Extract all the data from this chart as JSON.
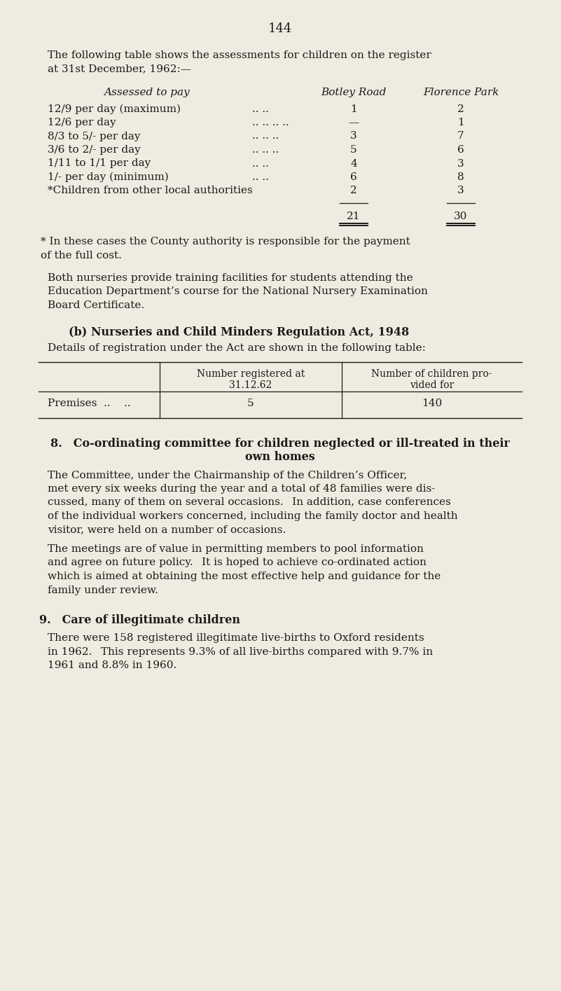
{
  "bg_color": "#f0ebe0",
  "text_color": "#1a1a1a",
  "page_number": "144",
  "intro_line1": "The following table shows the assessments for children on the register",
  "intro_line2": "at 31st December, 1962:—",
  "table1_header_col0": "Assessed to pay",
  "table1_header_col1": "Botley Road",
  "table1_header_col2": "Florence Park",
  "table1_rows": [
    [
      "12/9 per day (maximum)",
      "..",
      "..",
      "1",
      "2"
    ],
    [
      "12/6 per day",
      "..",
      "..",
      "..",
      "—",
      "1"
    ],
    [
      "8/3 to 5/- per day",
      "..",
      "..",
      "..",
      "3",
      "7"
    ],
    [
      "3/6 to 2/- per day",
      "..",
      "..",
      "..",
      "5",
      "6"
    ],
    [
      "1/11 to 1/1 per day",
      "..",
      "..",
      "..",
      "4",
      "3"
    ],
    [
      "1/- per day (minimum)",
      "..",
      "..",
      "6",
      "8"
    ],
    [
      "*Children from other local authorities",
      "2",
      "3"
    ]
  ],
  "table1_total": [
    "21",
    "30"
  ],
  "footnote1_line1": "* In these cases the County authority is responsible for the payment",
  "footnote1_line2": "of the full cost.",
  "para1_lines": [
    "Both nurseries provide training facilities for students attending the",
    "Education Department’s course for the National Nursery Examination",
    "Board Certificate."
  ],
  "section_b_title": "(b) Nurseries and Child Minders Regulation Act, 1948",
  "section_b_intro": "Details of registration under the Act are shown in the following table:",
  "table2_col1_line1": "Number registered at",
  "table2_col1_line2": "31.12.62",
  "table2_col2_line1": "Number of children pro-",
  "table2_col2_line2": "vided for",
  "table2_row_label": "Premises  ..    ..",
  "table2_val1": "5",
  "table2_val2": "140",
  "section8_line1": "8. Co-ordinating committee for children neglected or ill-treated in their",
  "section8_line2": "own homes",
  "section8_para1_lines": [
    "The Committee, under the Chairmanship of the Children’s Officer,",
    "met every six weeks during the year and a total of 48 families were dis-",
    "cussed, many of them on several occasions.  In addition, case conferences",
    "of the individual workers concerned, including the family doctor and health",
    "visitor, were held on a number of occasions."
  ],
  "section8_para2_lines": [
    "The meetings are of value in permitting members to pool information",
    "and agree on future policy.  It is hoped to achieve co-ordinated action",
    "which is aimed at obtaining the most effective help and guidance for the",
    "family under review."
  ],
  "section9_title": "9. Care of illegitimate children",
  "section9_para_lines": [
    "There were 158 registered illegitimate live-births to Oxford residents",
    "in 1962.  This represents 9.3% of all live-births compared with 9.7% in",
    "1961 and 8.8% in 1960."
  ]
}
